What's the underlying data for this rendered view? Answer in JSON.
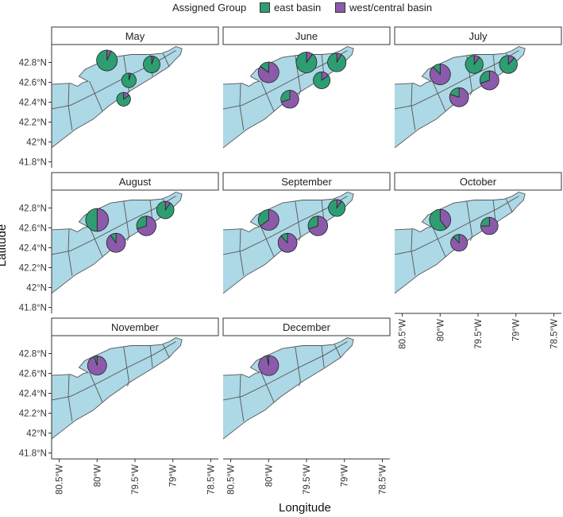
{
  "legend": {
    "title": "Assigned Group",
    "items": [
      {
        "label": "east basin",
        "color": "#2e9e72"
      },
      {
        "label": "west/central basin",
        "color": "#8c5aaa"
      }
    ]
  },
  "axes": {
    "x_title": "Longitude",
    "y_title": "Latitude",
    "x_ticks": [
      {
        "lon": -80.5,
        "label": "80.5°W"
      },
      {
        "lon": -80.0,
        "label": "80°W"
      },
      {
        "lon": -79.5,
        "label": "79.5°W"
      },
      {
        "lon": -79.0,
        "label": "79°W"
      },
      {
        "lon": -78.5,
        "label": "78.5°W"
      }
    ],
    "y_ticks": [
      {
        "lat": 42.8,
        "label": "42.8°N"
      },
      {
        "lat": 42.6,
        "label": "42.6°N"
      },
      {
        "lat": 42.4,
        "label": "42.4°N"
      },
      {
        "lat": 42.2,
        "label": "42.2°N"
      },
      {
        "lat": 42.0,
        "label": "42°N"
      },
      {
        "lat": 41.8,
        "label": "41.8°N"
      }
    ],
    "xlim": [
      -80.6,
      -78.4
    ],
    "ylim": [
      41.74,
      42.98
    ]
  },
  "colors": {
    "lake": "#add8e6",
    "east": "#2e9e72",
    "west": "#8c5aaa",
    "outline": "#555555"
  },
  "chart_data": {
    "type": "map-pie",
    "panels": [
      {
        "month": "May",
        "pies": [
          {
            "lon": -79.87,
            "lat": 42.82,
            "size": 1.0,
            "east": 0.93
          },
          {
            "lon": -79.58,
            "lat": 42.62,
            "size": 0.45,
            "east": 0.95
          },
          {
            "lon": -79.28,
            "lat": 42.78,
            "size": 0.65,
            "east": 0.95
          },
          {
            "lon": -79.65,
            "lat": 42.43,
            "size": 0.38,
            "east": 0.85
          }
        ]
      },
      {
        "month": "June",
        "pies": [
          {
            "lon": -80.0,
            "lat": 42.7,
            "size": 1.0,
            "east": 0.15
          },
          {
            "lon": -79.5,
            "lat": 42.8,
            "size": 1.0,
            "east": 0.9
          },
          {
            "lon": -79.1,
            "lat": 42.8,
            "size": 0.8,
            "east": 0.92
          },
          {
            "lon": -79.72,
            "lat": 42.43,
            "size": 0.75,
            "east": 0.3
          },
          {
            "lon": -79.3,
            "lat": 42.62,
            "size": 0.65,
            "east": 0.85
          }
        ]
      },
      {
        "month": "July",
        "pies": [
          {
            "lon": -80.0,
            "lat": 42.68,
            "size": 1.0,
            "east": 0.12
          },
          {
            "lon": -79.55,
            "lat": 42.78,
            "size": 0.75,
            "east": 0.9
          },
          {
            "lon": -79.1,
            "lat": 42.78,
            "size": 0.75,
            "east": 0.88
          },
          {
            "lon": -79.35,
            "lat": 42.62,
            "size": 0.85,
            "east": 0.3
          },
          {
            "lon": -79.75,
            "lat": 42.45,
            "size": 0.85,
            "east": 0.2
          }
        ]
      },
      {
        "month": "August",
        "pies": [
          {
            "lon": -80.0,
            "lat": 42.68,
            "size": 1.2,
            "east": 0.5
          },
          {
            "lon": -79.1,
            "lat": 42.78,
            "size": 0.7,
            "east": 0.9
          },
          {
            "lon": -79.35,
            "lat": 42.62,
            "size": 0.9,
            "east": 0.3
          },
          {
            "lon": -79.75,
            "lat": 42.45,
            "size": 0.85,
            "east": 0.1
          }
        ]
      },
      {
        "month": "September",
        "pies": [
          {
            "lon": -80.0,
            "lat": 42.68,
            "size": 1.0,
            "east": 0.35
          },
          {
            "lon": -79.1,
            "lat": 42.8,
            "size": 0.65,
            "east": 0.9
          },
          {
            "lon": -79.35,
            "lat": 42.62,
            "size": 0.9,
            "east": 0.3
          },
          {
            "lon": -79.75,
            "lat": 42.45,
            "size": 0.85,
            "east": 0.12
          }
        ]
      },
      {
        "month": "October",
        "pies": [
          {
            "lon": -80.0,
            "lat": 42.68,
            "size": 1.05,
            "east": 0.6
          },
          {
            "lon": -79.35,
            "lat": 42.62,
            "size": 0.7,
            "east": 0.25
          },
          {
            "lon": -79.75,
            "lat": 42.45,
            "size": 0.65,
            "east": 0.12
          }
        ]
      },
      {
        "month": "November",
        "pies": [
          {
            "lon": -80.0,
            "lat": 42.68,
            "size": 0.85,
            "east": 0.05
          }
        ]
      },
      {
        "month": "December",
        "pies": [
          {
            "lon": -80.0,
            "lat": 42.68,
            "size": 0.95,
            "east": 0.03
          }
        ]
      }
    ]
  }
}
